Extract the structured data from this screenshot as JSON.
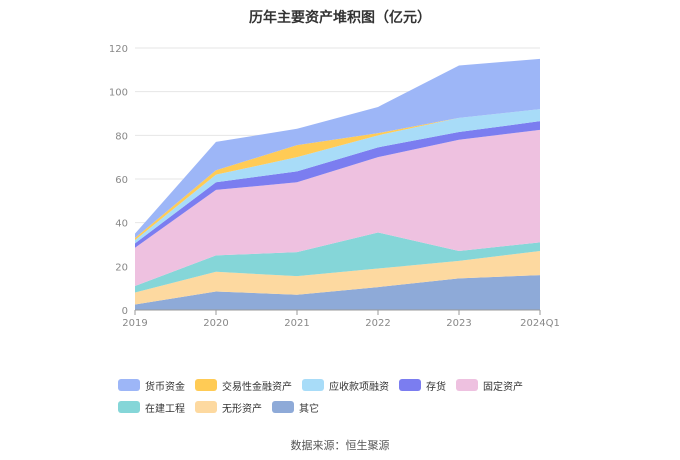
{
  "source_text": "数据来源：恒生聚源",
  "chart_data": {
    "type": "area",
    "stacked": true,
    "title": "历年主要资产堆积图（亿元）",
    "categories": [
      "2019",
      "2020",
      "2021",
      "2022",
      "2023",
      "2024Q1"
    ],
    "ylim": [
      0,
      120
    ],
    "yticks": [
      0,
      20,
      40,
      60,
      80,
      100,
      120
    ],
    "grid": true,
    "legend_position": "bottom",
    "series": [
      {
        "name": "其它",
        "color": "#8eaad8",
        "values": [
          2.5,
          8.5,
          7,
          10.5,
          14.5,
          16
        ]
      },
      {
        "name": "无形资产",
        "color": "#fdd9a0",
        "values": [
          5.5,
          9,
          8.5,
          8.5,
          8,
          11
        ]
      },
      {
        "name": "在建工程",
        "color": "#85d6d8",
        "values": [
          3,
          7.5,
          11,
          16.5,
          4.5,
          4
        ]
      },
      {
        "name": "固定资产",
        "color": "#eec1e0",
        "values": [
          17.5,
          30,
          32,
          34.5,
          51,
          51.5
        ]
      },
      {
        "name": "存货",
        "color": "#7b7df0",
        "values": [
          2,
          3.5,
          5,
          4.5,
          3.5,
          4
        ]
      },
      {
        "name": "应收款项融资",
        "color": "#a8dcf8",
        "values": [
          1.5,
          3.5,
          6.5,
          5.5,
          6.5,
          5.5
        ]
      },
      {
        "name": "交易性金融资产",
        "color": "#ffcb55",
        "values": [
          1,
          2,
          5.5,
          1,
          0,
          0
        ]
      },
      {
        "name": "货币资金",
        "color": "#9db6f7",
        "values": [
          2,
          13,
          7.5,
          12,
          24,
          23
        ]
      }
    ],
    "legend_order": [
      "货币资金",
      "交易性金融资产",
      "应收款项融资",
      "存货",
      "固定资产",
      "在建工程",
      "无形资产",
      "其它"
    ]
  }
}
